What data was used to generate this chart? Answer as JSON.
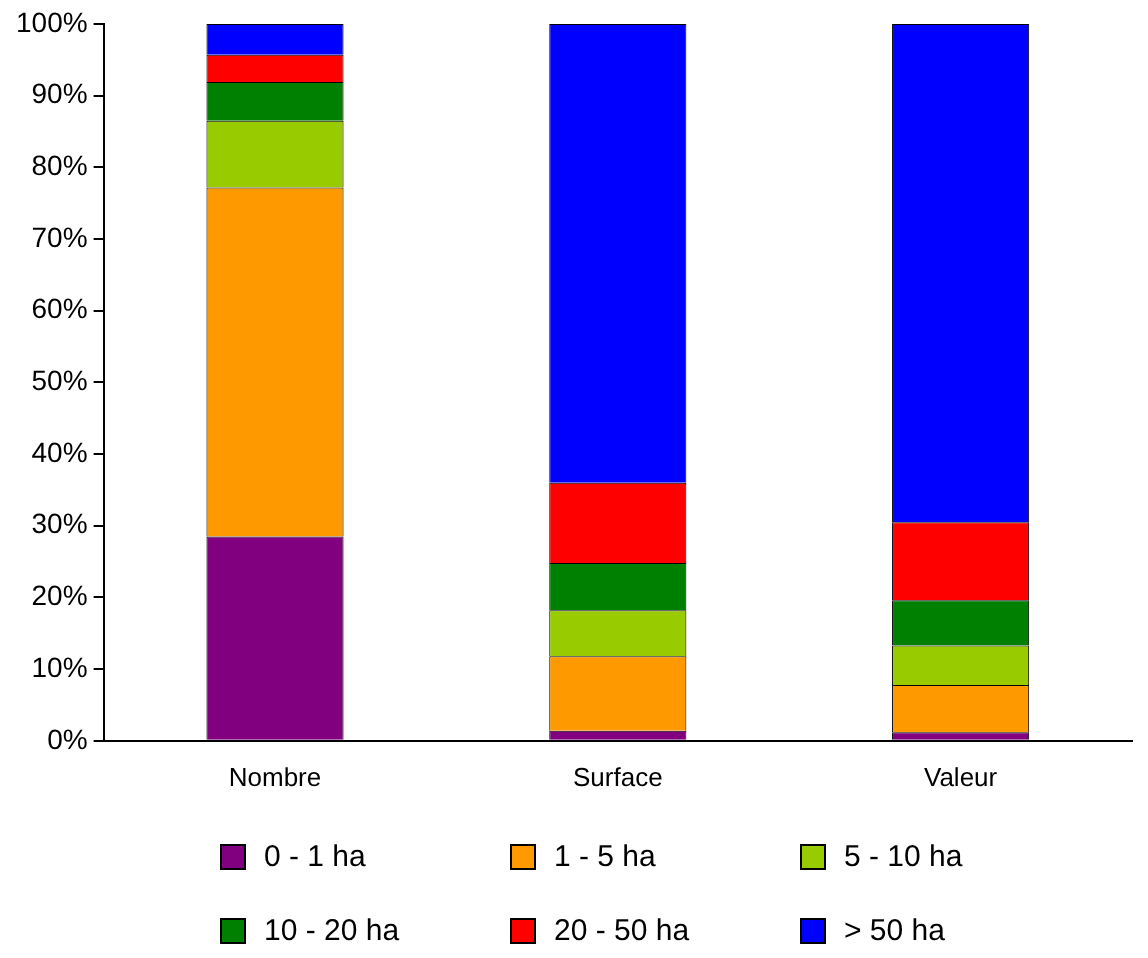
{
  "chart_data": {
    "type": "bar",
    "stacked": true,
    "categories": [
      "Nombre",
      "Surface",
      "Valeur"
    ],
    "series": [
      {
        "name": "0 - 1 ha",
        "color": "#800080",
        "values": [
          28.5,
          1.4,
          1.2
        ]
      },
      {
        "name": "1 - 5 ha",
        "color": "#ff9900",
        "values": [
          48.7,
          10.4,
          6.6
        ]
      },
      {
        "name": "5 - 10 ha",
        "color": "#99cc00",
        "values": [
          9.3,
          6.4,
          5.5
        ]
      },
      {
        "name": "10 - 20 ha",
        "color": "#008000",
        "values": [
          5.4,
          6.6,
          6.3
        ]
      },
      {
        "name": "20 - 50 ha",
        "color": "#ff0000",
        "values": [
          3.8,
          11.2,
          10.9
        ]
      },
      {
        "name": "> 50 ha",
        "color": "#0000ff",
        "values": [
          4.3,
          64.0,
          69.5
        ]
      }
    ],
    "ylim": [
      0,
      100
    ],
    "yticks": [
      {
        "value": 0,
        "label": "0%"
      },
      {
        "value": 10,
        "label": "10%"
      },
      {
        "value": 20,
        "label": "20%"
      },
      {
        "value": 30,
        "label": "30%"
      },
      {
        "value": 40,
        "label": "40%"
      },
      {
        "value": 50,
        "label": "50%"
      },
      {
        "value": 60,
        "label": "60%"
      },
      {
        "value": 70,
        "label": "70%"
      },
      {
        "value": 80,
        "label": "80%"
      },
      {
        "value": 90,
        "label": "90%"
      },
      {
        "value": 100,
        "label": "100%"
      }
    ],
    "grid": false,
    "legend": "bottom"
  }
}
